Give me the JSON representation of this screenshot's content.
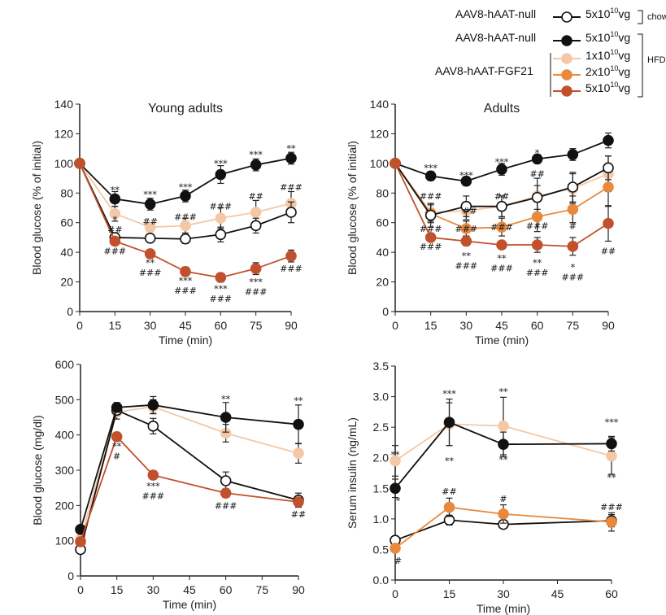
{
  "legend": {
    "groups": [
      {
        "label": "AAV8-hAAT-null",
        "dose": "5x10",
        "exp": "10",
        "unit": "vg",
        "style": "open",
        "diet": "chow"
      },
      {
        "label": "AAV8-hAAT-null",
        "dose": "5x10",
        "exp": "10",
        "unit": "vg",
        "style": "black"
      },
      {
        "label": "",
        "dose": "1x10",
        "exp": "10",
        "unit": "vg",
        "style": "light"
      },
      {
        "label": "AAV8-hAAT-FGF21",
        "dose": "2x10",
        "exp": "10",
        "unit": "vg",
        "style": "orange"
      },
      {
        "label": "",
        "dose": "5x10",
        "exp": "10",
        "unit": "vg",
        "style": "darkred"
      }
    ],
    "hfd_label": "HFD",
    "chow_label": "chow"
  },
  "colors": {
    "open": "#ffffff",
    "black": "#111111",
    "light": "#f4c8a6",
    "orange": "#e8893e",
    "darkred": "#c1502c"
  },
  "chart_data": [
    {
      "type": "line",
      "title": "Young adults",
      "xlabel": "Time (min)",
      "ylabel": "Blood glucose (% of initial)",
      "x": [
        0,
        15,
        30,
        45,
        60,
        75,
        90
      ],
      "xticks": [
        0,
        15,
        30,
        45,
        60,
        75,
        90
      ],
      "xlim": [
        0,
        90
      ],
      "ylim": [
        0,
        140
      ],
      "yticks": [
        0,
        20,
        40,
        60,
        80,
        100,
        120,
        140
      ],
      "grid": false,
      "series": [
        {
          "style": "light",
          "values": [
            100,
            66,
            57,
            58,
            63,
            67,
            73
          ],
          "err": [
            0,
            5,
            3,
            5,
            7,
            8,
            8
          ]
        },
        {
          "style": "open",
          "values": [
            100,
            50,
            49.5,
            49,
            52,
            58,
            67
          ],
          "err": [
            0,
            3,
            2,
            3,
            5,
            5,
            7
          ]
        },
        {
          "style": "black",
          "values": [
            100,
            76,
            72.5,
            78,
            92.5,
            99,
            103.5
          ],
          "err": [
            0,
            5,
            4,
            4,
            6,
            4,
            4
          ]
        },
        {
          "style": "darkred",
          "values": [
            100,
            47.5,
            39,
            27,
            23,
            29,
            37.5
          ],
          "err": [
            0,
            2,
            2,
            3,
            3,
            4,
            4
          ]
        }
      ],
      "annotations": [
        {
          "x": 15,
          "y": 82,
          "text": "**"
        },
        {
          "x": 15,
          "y": 62,
          "text": "*"
        },
        {
          "x": 15,
          "y": 57,
          "text": "##"
        },
        {
          "x": 15,
          "y": 41,
          "text": "###"
        },
        {
          "x": 30,
          "y": 79,
          "text": "***"
        },
        {
          "x": 30,
          "y": 61,
          "text": "##"
        },
        {
          "x": 30,
          "y": 33,
          "text": "**"
        },
        {
          "x": 30,
          "y": 29,
          "text": "###"
        },
        {
          "x": 45,
          "y": 84,
          "text": "***"
        },
        {
          "x": 45,
          "y": 64,
          "text": "###"
        },
        {
          "x": 45,
          "y": 21,
          "text": "***"
        },
        {
          "x": 45,
          "y": 17,
          "text": "###"
        },
        {
          "x": 60,
          "y": 100,
          "text": "***"
        },
        {
          "x": 60,
          "y": 71,
          "text": "###"
        },
        {
          "x": 60,
          "y": 15.5,
          "text": "***"
        },
        {
          "x": 60,
          "y": 11.5,
          "text": "###"
        },
        {
          "x": 75,
          "y": 106,
          "text": "***"
        },
        {
          "x": 75,
          "y": 78,
          "text": "##"
        },
        {
          "x": 75,
          "y": 20,
          "text": "***"
        },
        {
          "x": 75,
          "y": 16,
          "text": "###"
        },
        {
          "x": 90,
          "y": 110,
          "text": "**"
        },
        {
          "x": 90,
          "y": 84,
          "text": "###"
        },
        {
          "x": 90,
          "y": 29,
          "text": "###"
        }
      ]
    },
    {
      "type": "line",
      "title": "Adults",
      "xlabel": "Time (min)",
      "ylabel": "Blood glucose (% of initial)",
      "x": [
        0,
        15,
        30,
        45,
        60,
        75,
        90
      ],
      "xticks": [
        0,
        15,
        30,
        45,
        60,
        75,
        90
      ],
      "xlim": [
        0,
        90
      ],
      "ylim": [
        0,
        140
      ],
      "yticks": [
        0,
        20,
        40,
        60,
        80,
        100,
        120,
        140
      ],
      "grid": false,
      "series": [
        {
          "style": "light",
          "values": [
            100,
            67,
            68,
            71,
            78,
            83,
            93
          ],
          "err": [
            0,
            6,
            6,
            7,
            12,
            10,
            12
          ]
        },
        {
          "style": "orange",
          "values": [
            100,
            66,
            56,
            57,
            64,
            69,
            84
          ],
          "err": [
            0,
            6,
            5,
            6,
            10,
            9,
            13
          ]
        },
        {
          "style": "open",
          "values": [
            100,
            65,
            71,
            71,
            77,
            84,
            97
          ],
          "err": [
            0,
            8,
            7,
            7,
            8,
            10,
            8
          ]
        },
        {
          "style": "black",
          "values": [
            100,
            91.5,
            88,
            96,
            103,
            106,
            115.5
          ],
          "err": [
            0,
            3,
            3,
            4,
            3,
            4,
            5
          ]
        },
        {
          "style": "darkred",
          "values": [
            100,
            50,
            47.5,
            45,
            45,
            44,
            59.5
          ],
          "err": [
            0,
            2,
            3,
            2,
            5,
            6,
            12
          ]
        }
      ],
      "annotations": [
        {
          "x": 15,
          "y": 97,
          "text": "***"
        },
        {
          "x": 15,
          "y": 78,
          "text": "###"
        },
        {
          "x": 15,
          "y": 56,
          "text": "###"
        },
        {
          "x": 15,
          "y": 44,
          "text": "###"
        },
        {
          "x": 30,
          "y": 92,
          "text": "***"
        },
        {
          "x": 31.5,
          "y": 68,
          "text": "##"
        },
        {
          "x": 30,
          "y": 56,
          "text": "###"
        },
        {
          "x": 30,
          "y": 37.5,
          "text": "**"
        },
        {
          "x": 30,
          "y": 34,
          "text": "###"
        },
        {
          "x": 45,
          "y": 101,
          "text": "***"
        },
        {
          "x": 45,
          "y": 78,
          "text": "##"
        },
        {
          "x": 45,
          "y": 57,
          "text": "###"
        },
        {
          "x": 45,
          "y": 36,
          "text": "**"
        },
        {
          "x": 45,
          "y": 33,
          "text": "###"
        },
        {
          "x": 60,
          "y": 107,
          "text": "*"
        },
        {
          "x": 60,
          "y": 93,
          "text": "##"
        },
        {
          "x": 60,
          "y": 58,
          "text": "###"
        },
        {
          "x": 60,
          "y": 33,
          "text": "**"
        },
        {
          "x": 60,
          "y": 29.5,
          "text": "###"
        },
        {
          "x": 75,
          "y": 58,
          "text": "#"
        },
        {
          "x": 75,
          "y": 30,
          "text": "*"
        },
        {
          "x": 75,
          "y": 26.5,
          "text": "###"
        },
        {
          "x": 90,
          "y": 41,
          "text": "##"
        }
      ]
    },
    {
      "type": "line",
      "title": "",
      "xlabel": "Time (min)",
      "ylabel": "Blood glucose (mg/dl)",
      "x": [
        0,
        15,
        30,
        60,
        90
      ],
      "xticks": [
        0,
        15,
        30,
        45,
        60,
        75,
        90
      ],
      "xlim": [
        0,
        90
      ],
      "ylim": [
        0,
        600
      ],
      "yticks": [
        0,
        100,
        200,
        300,
        400,
        500,
        600
      ],
      "grid": false,
      "series": [
        {
          "style": "light",
          "values": [
            105,
            465,
            480,
            405,
            348
          ],
          "err": [
            0,
            20,
            20,
            25,
            28
          ]
        },
        {
          "style": "open",
          "values": [
            75,
            470,
            425,
            270,
            215
          ],
          "err": [
            0,
            12,
            22,
            25,
            20
          ]
        },
        {
          "style": "black",
          "values": [
            132,
            478,
            485,
            450,
            430
          ],
          "err": [
            0,
            14,
            24,
            42,
            55
          ]
        },
        {
          "style": "darkred",
          "values": [
            97,
            395,
            286,
            235,
            210
          ],
          "err": [
            0,
            12,
            12,
            12,
            12
          ]
        }
      ],
      "annotations": [
        {
          "x": 15,
          "y": 368,
          "text": "**"
        },
        {
          "x": 15,
          "y": 345,
          "text": "#"
        },
        {
          "x": 30,
          "y": 255,
          "text": "***"
        },
        {
          "x": 30,
          "y": 232,
          "text": "###"
        },
        {
          "x": 60,
          "y": 502,
          "text": "**"
        },
        {
          "x": 60,
          "y": 200,
          "text": "###"
        },
        {
          "x": 90,
          "y": 497,
          "text": "**"
        },
        {
          "x": 90,
          "y": 175,
          "text": "##"
        }
      ]
    },
    {
      "type": "line",
      "title": "",
      "xlabel": "Time (min)",
      "ylabel": "Serum insulin (ng/mL)",
      "x": [
        0,
        15,
        30,
        60
      ],
      "xticks": [
        0,
        15,
        30,
        45,
        60
      ],
      "xlim": [
        0,
        60
      ],
      "ylim": [
        0,
        3.5
      ],
      "yticks": [
        "0.0",
        "0.5",
        "1.0",
        "1.5",
        "2.0",
        "2.5",
        "3.0",
        "3.5"
      ],
      "grid": false,
      "series": [
        {
          "style": "light",
          "values": [
            1.95,
            2.55,
            2.52,
            2.03
          ],
          "err": [
            0.25,
            0.35,
            0.47,
            0.3
          ]
        },
        {
          "style": "open",
          "values": [
            0.65,
            0.98,
            0.91,
            0.97
          ],
          "err": [
            0.07,
            0.08,
            0.05,
            0.1
          ]
        },
        {
          "style": "black",
          "values": [
            1.5,
            2.58,
            2.22,
            2.23
          ],
          "err": [
            0.15,
            0.38,
            0.2,
            0.12
          ]
        },
        {
          "style": "orange",
          "values": [
            0.52,
            1.19,
            1.08,
            0.95
          ],
          "err": [
            0.06,
            0.15,
            0.15,
            0.15
          ]
        }
      ],
      "annotations": [
        {
          "x": 0,
          "y": 2.05,
          "text": "**"
        },
        {
          "x": 0.8,
          "y": 1.3,
          "text": "*"
        },
        {
          "x": 0.8,
          "y": 0.32,
          "text": "#"
        },
        {
          "x": 15,
          "y": 3.05,
          "text": "***"
        },
        {
          "x": 15,
          "y": 1.95,
          "text": "**"
        },
        {
          "x": 15,
          "y": 1.45,
          "text": "##"
        },
        {
          "x": 30,
          "y": 3.08,
          "text": "**"
        },
        {
          "x": 30,
          "y": 1.97,
          "text": "**"
        },
        {
          "x": 30,
          "y": 1.33,
          "text": "#"
        },
        {
          "x": 60,
          "y": 2.58,
          "text": "***"
        },
        {
          "x": 60,
          "y": 1.68,
          "text": "**"
        },
        {
          "x": 60,
          "y": 1.2,
          "text": "###"
        }
      ]
    }
  ]
}
